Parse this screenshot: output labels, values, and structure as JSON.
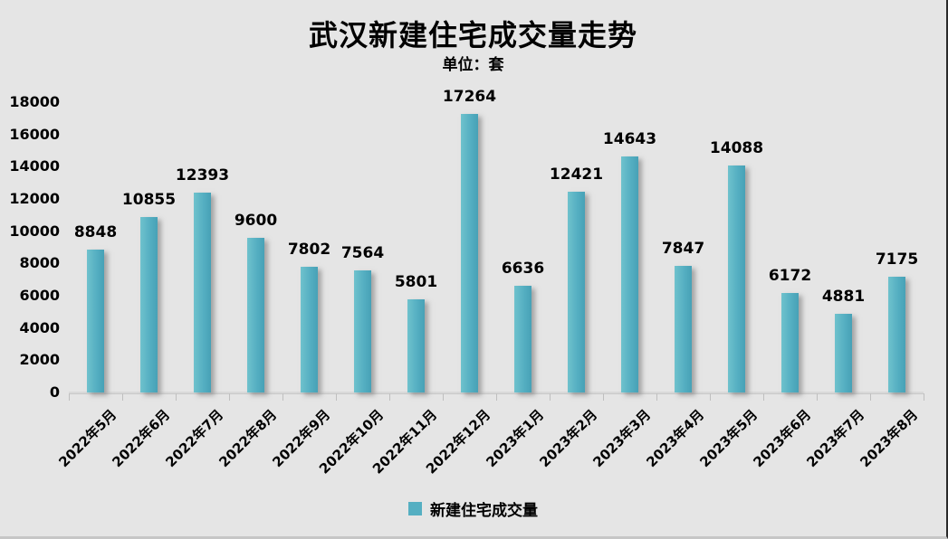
{
  "chart_data": {
    "type": "bar",
    "title": "武汉新建住宅成交量走势",
    "subtitle": "单位：套",
    "categories": [
      "2022年5月",
      "2022年6月",
      "2022年7月",
      "2022年8月",
      "2022年9月",
      "2022年10月",
      "2022年11月",
      "2022年12月",
      "2023年1月",
      "2023年2月",
      "2023年3月",
      "2023年4月",
      "2023年5月",
      "2023年6月",
      "2023年7月",
      "2023年8月"
    ],
    "series": [
      {
        "name": "新建住宅成交量",
        "values": [
          8848,
          10855,
          12393,
          9600,
          7802,
          7564,
          5801,
          17264,
          6636,
          12421,
          14643,
          7847,
          14088,
          6172,
          4881,
          7175
        ]
      }
    ],
    "xlabel": "",
    "ylabel": "",
    "ylim": [
      0,
      18000
    ],
    "yticks": [
      0,
      2000,
      4000,
      6000,
      8000,
      10000,
      12000,
      14000,
      16000,
      18000
    ],
    "grid": false,
    "legend_position": "bottom",
    "data_labels": true,
    "colors": {
      "background": "#e5e5e5",
      "bar_light": "#6fc2cd",
      "bar_dark": "#47a1b6",
      "legend_swatch": "#55afc2",
      "text": "#000000",
      "axis_line": "#d9d9d9"
    }
  }
}
